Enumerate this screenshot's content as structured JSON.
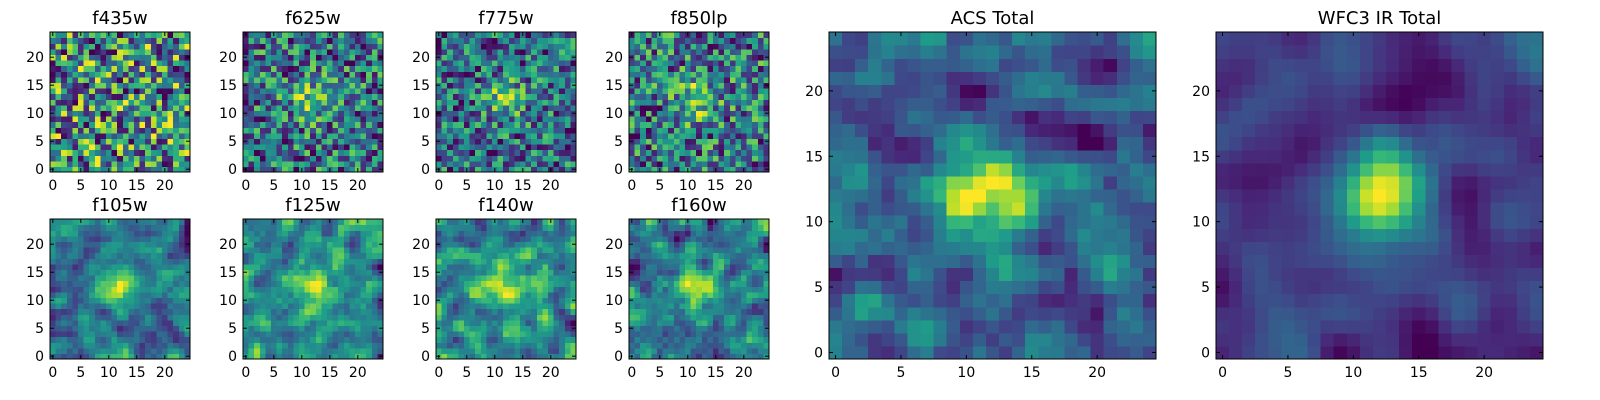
{
  "chart_data": [
    {
      "type": "heatmap",
      "title": "f435w",
      "grid": [
        25,
        25
      ],
      "xlim": [
        0,
        25
      ],
      "ylim": [
        0,
        25
      ],
      "xticks": [
        0,
        5,
        10,
        15,
        20
      ],
      "yticks": [
        0,
        5,
        10,
        15,
        20
      ],
      "colormap": "viridis",
      "pattern": "noise",
      "seed": 11
    },
    {
      "type": "heatmap",
      "title": "f625w",
      "grid": [
        25,
        25
      ],
      "xlim": [
        0,
        25
      ],
      "ylim": [
        0,
        25
      ],
      "xticks": [
        0,
        5,
        10,
        15,
        20
      ],
      "yticks": [
        0,
        5,
        10,
        15,
        20
      ],
      "colormap": "viridis",
      "pattern": "noise-blob",
      "seed": 23
    },
    {
      "type": "heatmap",
      "title": "f775w",
      "grid": [
        25,
        25
      ],
      "xlim": [
        0,
        25
      ],
      "ylim": [
        0,
        25
      ],
      "xticks": [
        0,
        5,
        10,
        15,
        20
      ],
      "yticks": [
        0,
        5,
        10,
        15,
        20
      ],
      "colormap": "viridis",
      "pattern": "noise-blob",
      "seed": 37
    },
    {
      "type": "heatmap",
      "title": "f850lp",
      "grid": [
        25,
        25
      ],
      "xlim": [
        0,
        25
      ],
      "ylim": [
        0,
        25
      ],
      "xticks": [
        0,
        5,
        10,
        15,
        20
      ],
      "yticks": [
        0,
        5,
        10,
        15,
        20
      ],
      "colormap": "viridis",
      "pattern": "noise-blob",
      "seed": 41
    },
    {
      "type": "heatmap",
      "title": "f105w",
      "grid": [
        25,
        25
      ],
      "xlim": [
        0,
        25
      ],
      "ylim": [
        0,
        25
      ],
      "xticks": [
        0,
        5,
        10,
        15,
        20
      ],
      "yticks": [
        0,
        5,
        10,
        15,
        20
      ],
      "colormap": "viridis",
      "pattern": "smooth",
      "seed": 53
    },
    {
      "type": "heatmap",
      "title": "f125w",
      "grid": [
        25,
        25
      ],
      "xlim": [
        0,
        25
      ],
      "ylim": [
        0,
        25
      ],
      "xticks": [
        0,
        5,
        10,
        15,
        20
      ],
      "yticks": [
        0,
        5,
        10,
        15,
        20
      ],
      "colormap": "viridis",
      "pattern": "smooth",
      "seed": 61
    },
    {
      "type": "heatmap",
      "title": "f140w",
      "grid": [
        25,
        25
      ],
      "xlim": [
        0,
        25
      ],
      "ylim": [
        0,
        25
      ],
      "xticks": [
        0,
        5,
        10,
        15,
        20
      ],
      "yticks": [
        0,
        5,
        10,
        15,
        20
      ],
      "colormap": "viridis",
      "pattern": "smooth",
      "seed": 73
    },
    {
      "type": "heatmap",
      "title": "f160w",
      "grid": [
        25,
        25
      ],
      "xlim": [
        0,
        25
      ],
      "ylim": [
        0,
        25
      ],
      "xticks": [
        0,
        5,
        10,
        15,
        20
      ],
      "yticks": [
        0,
        5,
        10,
        15,
        20
      ],
      "colormap": "viridis",
      "pattern": "smooth",
      "seed": 89
    },
    {
      "type": "heatmap",
      "title": "ACS Total",
      "grid": [
        25,
        25
      ],
      "xlim": [
        0,
        25
      ],
      "ylim": [
        0,
        25
      ],
      "xticks": [
        0,
        5,
        10,
        15,
        20
      ],
      "yticks": [
        0,
        5,
        10,
        15,
        20
      ],
      "colormap": "viridis",
      "pattern": "medium-blob",
      "seed": 97
    },
    {
      "type": "heatmap",
      "title": "WFC3 IR Total",
      "grid": [
        25,
        25
      ],
      "xlim": [
        0,
        25
      ],
      "ylim": [
        0,
        25
      ],
      "xticks": [
        0,
        5,
        10,
        15,
        20
      ],
      "yticks": [
        0,
        5,
        10,
        15,
        20
      ],
      "colormap": "viridis",
      "pattern": "smooth-blob",
      "seed": 101
    }
  ]
}
